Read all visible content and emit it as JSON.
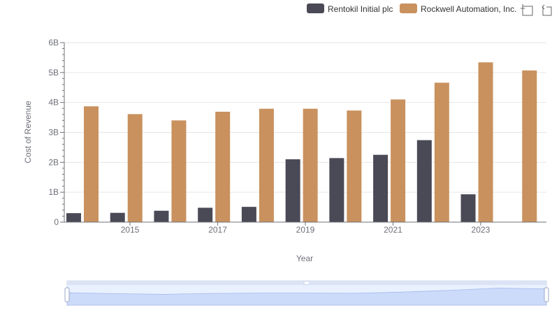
{
  "toolbar": {
    "icons": [
      "zoom-icon",
      "restore-icon"
    ]
  },
  "colors": {
    "rentokil": "#4a4a57",
    "rockwell": "#c9915e",
    "grid": "#e6e6e6",
    "axis": "#6e7079",
    "slider_fill": "#dbe3fb",
    "slider_border": "#c8d3f0"
  },
  "chart_data": {
    "type": "bar",
    "xlabel": "Year",
    "ylabel": "Cost of Revenue",
    "ylim": [
      0,
      6000000000
    ],
    "yticks": [
      "0",
      "1B",
      "2B",
      "3B",
      "4B",
      "5B",
      "6B"
    ],
    "categories": [
      "2014",
      "2015",
      "2016",
      "2017",
      "2018",
      "2019",
      "2020",
      "2021",
      "2022",
      "2023",
      "2024"
    ],
    "xtick_labels": [
      "2015",
      "2017",
      "2019",
      "2021",
      "2023"
    ],
    "legend_position": "top-right",
    "grid": true,
    "series": [
      {
        "name": "Rentokil Initial plc",
        "values": [
          300000000,
          310000000,
          380000000,
          480000000,
          510000000,
          2100000000,
          2140000000,
          2250000000,
          2740000000,
          930000000,
          null
        ]
      },
      {
        "name": "Rockwell Automation, Inc.",
        "values": [
          3870000000,
          3610000000,
          3400000000,
          3690000000,
          3790000000,
          3790000000,
          3730000000,
          4100000000,
          4660000000,
          5340000000,
          5070000000
        ]
      }
    ]
  }
}
